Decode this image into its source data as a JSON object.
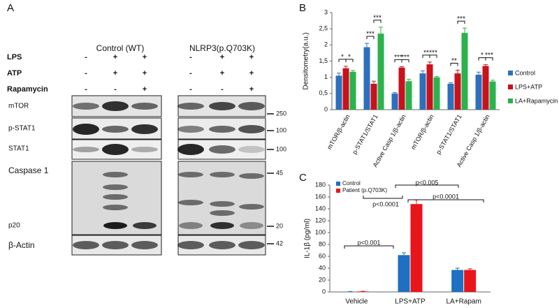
{
  "panel_a": {
    "label": "A",
    "groups": [
      "Control (WT)",
      "NLRP3(p.Q703K)"
    ],
    "treatments": [
      {
        "name": "LPS",
        "signs": [
          "-",
          "+",
          "+",
          "-",
          "+",
          "+"
        ]
      },
      {
        "name": "ATP",
        "signs": [
          "-",
          "+",
          "+",
          "-",
          "+",
          "+"
        ]
      },
      {
        "name": "Rapamycin",
        "signs": [
          "-",
          "-",
          "+",
          "-",
          "-",
          "+"
        ]
      }
    ],
    "blots": [
      "mTOR",
      "p-STAT1",
      "STAT1",
      "Caspase 1",
      "p20",
      "β-Actin"
    ],
    "markers": [
      "250",
      "100",
      "100",
      "45",
      "20",
      "42"
    ]
  },
  "chart_data": [
    {
      "type": "bar",
      "panel_label": "B",
      "y_label": "Densitometry(a.u.)",
      "categories": [
        "mTOR/β-actin",
        "p-STAT1/STAT1",
        "Active Casp 1/β-actin",
        "mTOR/β-actin",
        "p-STAT1/STAT1",
        "Active Casp 1/β-actin"
      ],
      "series": [
        {
          "name": "Control",
          "color": "#2e6fbd",
          "values": [
            1.05,
            1.93,
            0.5,
            1.12,
            0.8,
            1.08
          ],
          "errors": [
            0.08,
            0.12,
            0.03,
            0.08,
            0.03,
            0.08
          ]
        },
        {
          "name": "LPS+ATP",
          "color": "#c8121c",
          "values": [
            1.28,
            0.8,
            1.3,
            1.4,
            1.12,
            1.35
          ],
          "errors": [
            0.06,
            0.08,
            0.03,
            0.07,
            0.1,
            0.04
          ]
        },
        {
          "name": "LA+Rapamycin",
          "color": "#2bb24c",
          "values": [
            1.17,
            2.35,
            0.88,
            1.0,
            2.37,
            0.87
          ],
          "errors": [
            0.04,
            0.2,
            0.06,
            0.03,
            0.15,
            0.04
          ]
        }
      ],
      "annotations": [
        [
          "*",
          "*"
        ],
        [
          "***",
          "***"
        ],
        [
          "***",
          "***"
        ],
        [
          "**",
          "***"
        ],
        [
          "**",
          "***"
        ],
        [
          "*",
          "***"
        ]
      ],
      "ylim": [
        0,
        3
      ],
      "yticks": [
        0,
        {
          "value": 0.5,
          "label": "0,5"
        },
        1,
        {
          "value": 1.5,
          "label": "1,5"
        },
        2,
        {
          "value": 2.5,
          "label": "2,5"
        },
        3
      ],
      "legend": "right"
    },
    {
      "type": "bar",
      "panel_label": "C",
      "y_label": "IL-1β (pg/ml)",
      "categories": [
        "Vehicle",
        "LPS+ATP",
        "LA+Rapam"
      ],
      "series": [
        {
          "name": "Control",
          "color": "#1f6fc2",
          "values": [
            0.5,
            62,
            37
          ],
          "errors": [
            0.3,
            4,
            3
          ]
        },
        {
          "name": "Patient (p.Q703K)",
          "color": "#e8151b",
          "values": [
            0.8,
            148,
            37
          ],
          "errors": [
            0.3,
            7,
            2
          ]
        }
      ],
      "annotations": [
        "p<0.001",
        "p<0.0001",
        "p<0.005",
        "p<0.0001"
      ],
      "ylim": [
        0,
        180
      ],
      "yticks": [
        0,
        20,
        40,
        60,
        80,
        100,
        120,
        140,
        160,
        180
      ],
      "legend": "top-left"
    }
  ]
}
